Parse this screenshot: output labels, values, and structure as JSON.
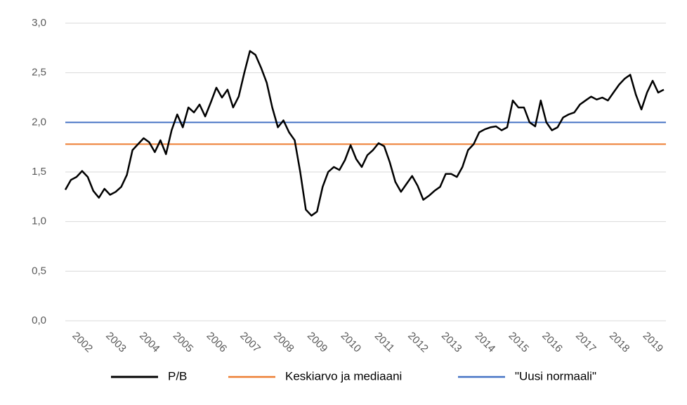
{
  "chart_data": {
    "type": "line",
    "categories": [
      null,
      null,
      null,
      "2002",
      null,
      null,
      null,
      null,
      null,
      "2003",
      null,
      null,
      null,
      null,
      null,
      "2004",
      null,
      null,
      null,
      null,
      null,
      "2005",
      null,
      null,
      null,
      null,
      null,
      "2006",
      null,
      null,
      null,
      null,
      null,
      "2007",
      null,
      null,
      null,
      null,
      null,
      "2008",
      null,
      null,
      null,
      null,
      null,
      "2009",
      null,
      null,
      null,
      null,
      null,
      "2010",
      null,
      null,
      null,
      null,
      null,
      "2011",
      null,
      null,
      null,
      null,
      null,
      "2012",
      null,
      null,
      null,
      null,
      null,
      "2013",
      null,
      null,
      null,
      null,
      null,
      "2014",
      null,
      null,
      null,
      null,
      null,
      "2015",
      null,
      null,
      null,
      null,
      null,
      "2016",
      null,
      null,
      null,
      null,
      null,
      "2017",
      null,
      null,
      null,
      null,
      null,
      "2018",
      null,
      null,
      null,
      null,
      null,
      "2019",
      null,
      null
    ],
    "series": [
      {
        "name": "P/B",
        "color": "#000000",
        "values": [
          1.32,
          1.42,
          1.45,
          1.51,
          1.45,
          1.31,
          1.24,
          1.33,
          1.27,
          1.3,
          1.35,
          1.47,
          1.72,
          1.78,
          1.84,
          1.8,
          1.7,
          1.82,
          1.68,
          1.92,
          2.08,
          1.95,
          2.15,
          2.1,
          2.18,
          2.06,
          2.2,
          2.35,
          2.25,
          2.33,
          2.15,
          2.26,
          2.5,
          2.72,
          2.68,
          2.55,
          2.4,
          2.15,
          1.95,
          2.02,
          1.9,
          1.82,
          1.5,
          1.12,
          1.06,
          1.1,
          1.35,
          1.5,
          1.55,
          1.52,
          1.62,
          1.77,
          1.63,
          1.55,
          1.67,
          1.72,
          1.79,
          1.76,
          1.6,
          1.4,
          1.3,
          1.38,
          1.46,
          1.36,
          1.22,
          1.26,
          1.31,
          1.35,
          1.48,
          1.48,
          1.45,
          1.55,
          1.72,
          1.78,
          1.9,
          1.93,
          1.95,
          1.96,
          1.92,
          1.95,
          2.22,
          2.15,
          2.15,
          2.0,
          1.96,
          2.22,
          2.0,
          1.92,
          1.95,
          2.05,
          2.08,
          2.1,
          2.18,
          2.22,
          2.26,
          2.23,
          2.25,
          2.22,
          2.3,
          2.38,
          2.44,
          2.48,
          2.28,
          2.13,
          2.3,
          2.42,
          2.3,
          2.33
        ]
      }
    ],
    "reference_lines": [
      {
        "name": "Keskiarvo ja mediaani",
        "color": "#ed7d31",
        "value": 1.78
      },
      {
        "name": "\"Uusi normaali\"",
        "color": "#4472c4",
        "value": 2.0
      }
    ],
    "ylim": [
      0,
      3
    ],
    "yticks": [
      {
        "value": 0,
        "label": "0,0"
      },
      {
        "value": 0.5,
        "label": "0,5"
      },
      {
        "value": 1,
        "label": "1,0"
      },
      {
        "value": 1.5,
        "label": "1,5"
      },
      {
        "value": 2,
        "label": "2,0"
      },
      {
        "value": 2.5,
        "label": "2,5"
      },
      {
        "value": 3,
        "label": "3,0"
      }
    ],
    "grid": true,
    "legend": "bottom"
  }
}
